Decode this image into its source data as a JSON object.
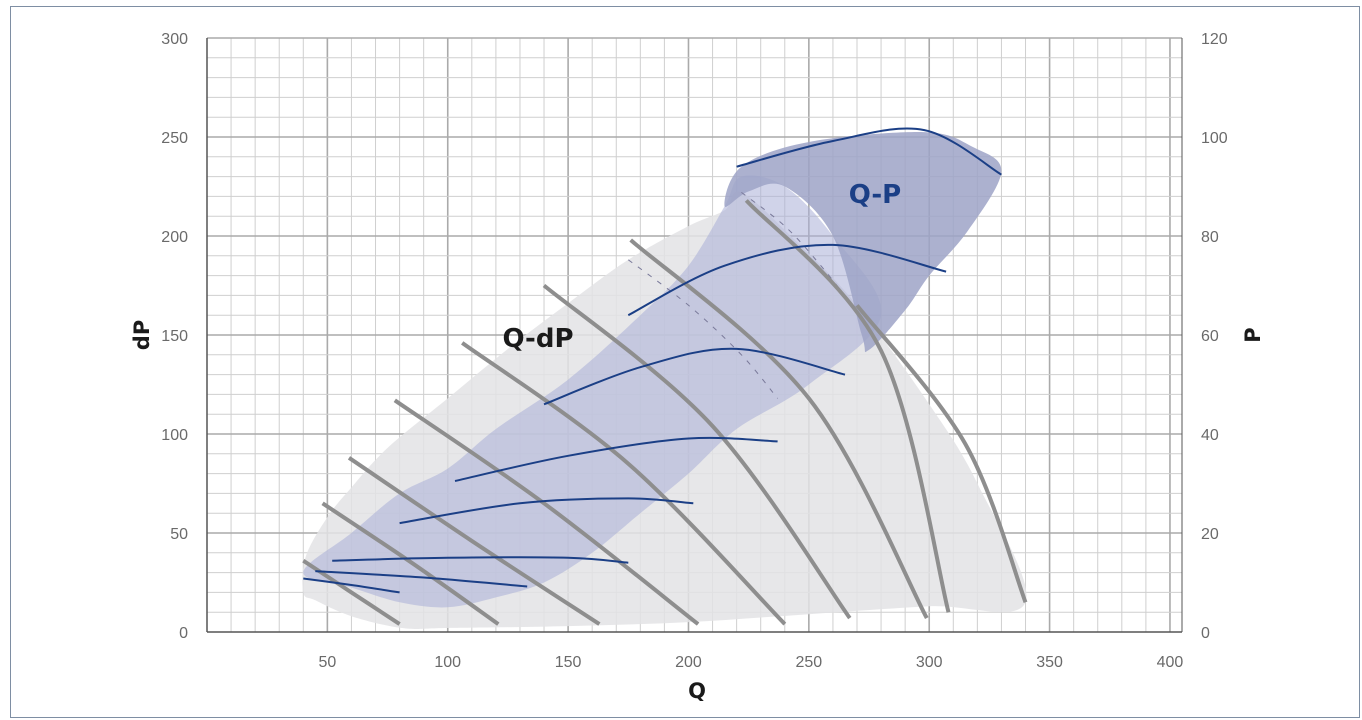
{
  "chart_data": {
    "type": "line",
    "title": "",
    "xlabel": "Q",
    "ylabel": "dP",
    "y2label": "P",
    "xlim": [
      0,
      405
    ],
    "ylim": [
      0,
      300
    ],
    "y2lim": [
      0,
      120
    ],
    "x_ticks": [
      50,
      100,
      150,
      200,
      250,
      300,
      350,
      400
    ],
    "y_ticks": [
      0,
      50,
      100,
      150,
      200,
      250,
      300
    ],
    "y2_ticks": [
      0,
      20,
      40,
      60,
      80,
      100,
      120
    ],
    "grid": true,
    "region_labels": {
      "dp": "Q-dP",
      "p": "Q-P"
    },
    "colors": {
      "dp_envelope": "#e3e3e5",
      "p_envelope": "#a9aed7",
      "p_upper_region": "#9ea3c7",
      "dp_curve": "#8e8e8e",
      "p_curve": "#1b3f86",
      "grid_major": "#aaaaaa",
      "grid_minor": "#cfcfcf",
      "p_label": "#1b3f86",
      "dp_label": "#1a1a1a"
    },
    "dp_envelope": [
      [
        40,
        20
      ],
      [
        41,
        38
      ],
      [
        50,
        58
      ],
      [
        60,
        73
      ],
      [
        75,
        93
      ],
      [
        100,
        118
      ],
      [
        125,
        143
      ],
      [
        150,
        166
      ],
      [
        175,
        188
      ],
      [
        200,
        205
      ],
      [
        215,
        213
      ],
      [
        222,
        222
      ],
      [
        245,
        197
      ],
      [
        270,
        165
      ],
      [
        300,
        115
      ],
      [
        320,
        75
      ],
      [
        340,
        15
      ],
      [
        300,
        13
      ],
      [
        250,
        9
      ],
      [
        200,
        5
      ],
      [
        150,
        3
      ],
      [
        100,
        2
      ],
      [
        81,
        2
      ],
      [
        60,
        8
      ],
      [
        45,
        16
      ]
    ],
    "p_envelope": [
      [
        40,
        12
      ],
      [
        60,
        20
      ],
      [
        80,
        28
      ],
      [
        100,
        33
      ],
      [
        120,
        41
      ],
      [
        150,
        51
      ],
      [
        180,
        64
      ],
      [
        200,
        74
      ],
      [
        215,
        86
      ],
      [
        222,
        92
      ],
      [
        240,
        90
      ],
      [
        260,
        80
      ],
      [
        280,
        64
      ],
      [
        250,
        50
      ],
      [
        220,
        41
      ],
      [
        200,
        32
      ],
      [
        180,
        24
      ],
      [
        160,
        16
      ],
      [
        140,
        10
      ],
      [
        120,
        7
      ],
      [
        100,
        5
      ],
      [
        80,
        6
      ],
      [
        60,
        9
      ]
    ],
    "p_upper_region": [
      [
        222,
        94
      ],
      [
        250,
        99
      ],
      [
        298,
        101
      ],
      [
        318,
        98
      ],
      [
        330,
        93
      ],
      [
        316,
        81
      ],
      [
        300,
        72
      ],
      [
        290,
        65
      ],
      [
        275,
        57
      ],
      [
        272,
        60
      ],
      [
        260,
        80
      ],
      [
        240,
        90
      ],
      [
        225,
        89
      ],
      [
        215,
        86
      ]
    ],
    "dp_curves": [
      {
        "name": "",
        "points": [
          [
            40,
            36
          ],
          [
            60,
            20
          ],
          [
            80,
            4
          ]
        ]
      },
      {
        "name": "",
        "points": [
          [
            48,
            65
          ],
          [
            85,
            35
          ],
          [
            121,
            4
          ]
        ]
      },
      {
        "name": "",
        "points": [
          [
            59,
            88
          ],
          [
            110,
            46
          ],
          [
            163,
            4
          ]
        ]
      },
      {
        "name": "",
        "points": [
          [
            78,
            117
          ],
          [
            140,
            65
          ],
          [
            204,
            4
          ]
        ]
      },
      {
        "name": "",
        "points": [
          [
            106,
            146
          ],
          [
            175,
            85
          ],
          [
            240,
            4
          ]
        ]
      },
      {
        "name": "",
        "points": [
          [
            140,
            175
          ],
          [
            210,
            104
          ],
          [
            267,
            7
          ]
        ]
      },
      {
        "name": "",
        "points": [
          [
            176,
            198
          ],
          [
            250,
            118
          ],
          [
            299,
            7
          ]
        ]
      },
      {
        "name": "",
        "points": [
          [
            224,
            218
          ],
          [
            280,
            142
          ],
          [
            308,
            10
          ]
        ]
      },
      {
        "name": "",
        "points": [
          [
            270,
            165
          ],
          [
            315,
            95
          ],
          [
            340,
            15
          ]
        ]
      }
    ],
    "p_curves": [
      {
        "name": "",
        "points": [
          [
            40,
            10.8
          ],
          [
            60,
            9.5
          ],
          [
            80,
            8.0
          ]
        ]
      },
      {
        "name": "",
        "points": [
          [
            45,
            12.3
          ],
          [
            90,
            11.0
          ],
          [
            133,
            9.2
          ]
        ]
      },
      {
        "name": "",
        "points": [
          [
            52,
            14.4
          ],
          [
            100,
            15.0
          ],
          [
            150,
            15.0
          ],
          [
            175,
            14.0
          ]
        ]
      },
      {
        "name": "",
        "points": [
          [
            80,
            22
          ],
          [
            130,
            26
          ],
          [
            175,
            27
          ],
          [
            202,
            26
          ]
        ]
      },
      {
        "name": "",
        "points": [
          [
            103,
            30.5
          ],
          [
            150,
            35.6
          ],
          [
            200,
            39.1
          ],
          [
            237,
            38.5
          ]
        ]
      },
      {
        "name": "",
        "points": [
          [
            140,
            46
          ],
          [
            180,
            53.5
          ],
          [
            220,
            57.2
          ],
          [
            265,
            52
          ]
        ]
      },
      {
        "name": "",
        "points": [
          [
            175,
            64
          ],
          [
            215,
            74
          ],
          [
            260,
            78.2
          ],
          [
            307,
            72.8
          ]
        ]
      },
      {
        "name": "",
        "points": [
          [
            220,
            94
          ],
          [
            260,
            99.2
          ],
          [
            298,
            101.4
          ],
          [
            330,
            92.4
          ]
        ]
      }
    ]
  }
}
